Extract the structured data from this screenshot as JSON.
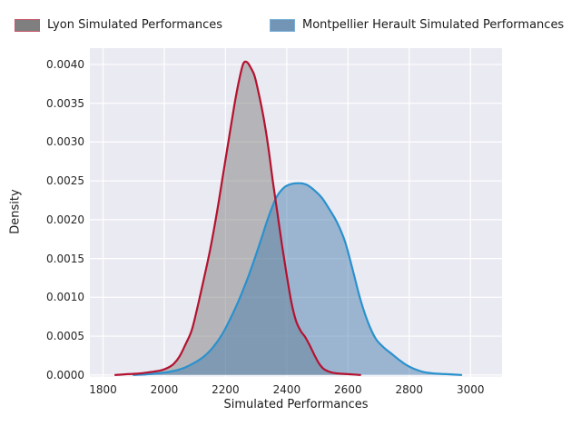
{
  "figure": {
    "background": "#ffffff",
    "plot_background": "#eaeaf2",
    "grid_color": "#ffffff"
  },
  "legend": {
    "items": [
      {
        "label": "Lyon Simulated Performances",
        "patch_fill": "#7f7f7f",
        "patch_border": "#c6586a"
      },
      {
        "label": "Montpellier Herault Simulated Performances",
        "patch_fill": "#7294b5",
        "patch_border": "#79b0d8"
      }
    ]
  },
  "chart_data": {
    "type": "area",
    "subtype": "kde-density",
    "title": "",
    "xlabel": "Simulated Performances",
    "ylabel": "Density",
    "xlim": [
      1757,
      3103
    ],
    "ylim": [
      -2e-05,
      0.00421
    ],
    "xticks": [
      1800,
      2000,
      2200,
      2400,
      2600,
      2800,
      3000
    ],
    "yticks": [
      0.0,
      0.0005,
      0.001,
      0.0015,
      0.002,
      0.0025,
      0.003,
      0.0035,
      0.004
    ],
    "ytick_labels": [
      "0.0000",
      "0.0005",
      "0.0010",
      "0.0015",
      "0.0020",
      "0.0025",
      "0.0030",
      "0.0035",
      "0.0040"
    ],
    "grid": true,
    "legend_position": "top",
    "series": [
      {
        "name": "Lyon Simulated Performances",
        "line_color": "#b4122f",
        "fill_color": "#7f7f7f",
        "fill_opacity": 0.5,
        "peak": {
          "x": 2262,
          "y": 0.00403
        },
        "points": [
          [
            1840,
            0.0
          ],
          [
            1880,
            1e-05
          ],
          [
            1920,
            2e-05
          ],
          [
            1960,
            4e-05
          ],
          [
            1990,
            6e-05
          ],
          [
            2010,
            9e-05
          ],
          [
            2030,
            0.00014
          ],
          [
            2050,
            0.00024
          ],
          [
            2070,
            0.0004
          ],
          [
            2090,
            0.00058
          ],
          [
            2110,
            0.0009
          ],
          [
            2130,
            0.00125
          ],
          [
            2150,
            0.00162
          ],
          [
            2170,
            0.00205
          ],
          [
            2190,
            0.00253
          ],
          [
            2210,
            0.00302
          ],
          [
            2230,
            0.0035
          ],
          [
            2245,
            0.00381
          ],
          [
            2258,
            0.00401
          ],
          [
            2270,
            0.00403
          ],
          [
            2282,
            0.00396
          ],
          [
            2295,
            0.00385
          ],
          [
            2310,
            0.0036
          ],
          [
            2325,
            0.0033
          ],
          [
            2340,
            0.00293
          ],
          [
            2355,
            0.00248
          ],
          [
            2370,
            0.00207
          ],
          [
            2385,
            0.00166
          ],
          [
            2400,
            0.00128
          ],
          [
            2415,
            0.00094
          ],
          [
            2430,
            0.0007
          ],
          [
            2445,
            0.00057
          ],
          [
            2460,
            0.00049
          ],
          [
            2475,
            0.00038
          ],
          [
            2490,
            0.00026
          ],
          [
            2505,
            0.00015
          ],
          [
            2520,
            8e-05
          ],
          [
            2540,
            4e-05
          ],
          [
            2565,
            2e-05
          ],
          [
            2600,
            1e-05
          ],
          [
            2640,
            0.0
          ]
        ]
      },
      {
        "name": "Montpellier Herault Simulated Performances",
        "line_color": "#2a91cd",
        "fill_color": "#4c7fb0",
        "fill_opacity": 0.5,
        "peak": {
          "x": 2440,
          "y": 0.00247
        },
        "points": [
          [
            1900,
            0.0
          ],
          [
            1950,
            1e-05
          ],
          [
            2000,
            3e-05
          ],
          [
            2040,
            6e-05
          ],
          [
            2070,
            0.0001
          ],
          [
            2100,
            0.00016
          ],
          [
            2130,
            0.00024
          ],
          [
            2160,
            0.00036
          ],
          [
            2190,
            0.00053
          ],
          [
            2215,
            0.00072
          ],
          [
            2240,
            0.00093
          ],
          [
            2265,
            0.00117
          ],
          [
            2290,
            0.00144
          ],
          [
            2315,
            0.00173
          ],
          [
            2340,
            0.00203
          ],
          [
            2365,
            0.00228
          ],
          [
            2390,
            0.00241
          ],
          [
            2415,
            0.00246
          ],
          [
            2440,
            0.00247
          ],
          [
            2465,
            0.00245
          ],
          [
            2490,
            0.00238
          ],
          [
            2515,
            0.00228
          ],
          [
            2540,
            0.00213
          ],
          [
            2565,
            0.00196
          ],
          [
            2590,
            0.00172
          ],
          [
            2615,
            0.00136
          ],
          [
            2640,
            0.00098
          ],
          [
            2665,
            0.00068
          ],
          [
            2690,
            0.00047
          ],
          [
            2715,
            0.00036
          ],
          [
            2740,
            0.00028
          ],
          [
            2765,
            0.0002
          ],
          [
            2790,
            0.00013
          ],
          [
            2815,
            8e-05
          ],
          [
            2845,
            4e-05
          ],
          [
            2880,
            2e-05
          ],
          [
            2920,
            1e-05
          ],
          [
            2970,
            0.0
          ]
        ]
      }
    ]
  }
}
